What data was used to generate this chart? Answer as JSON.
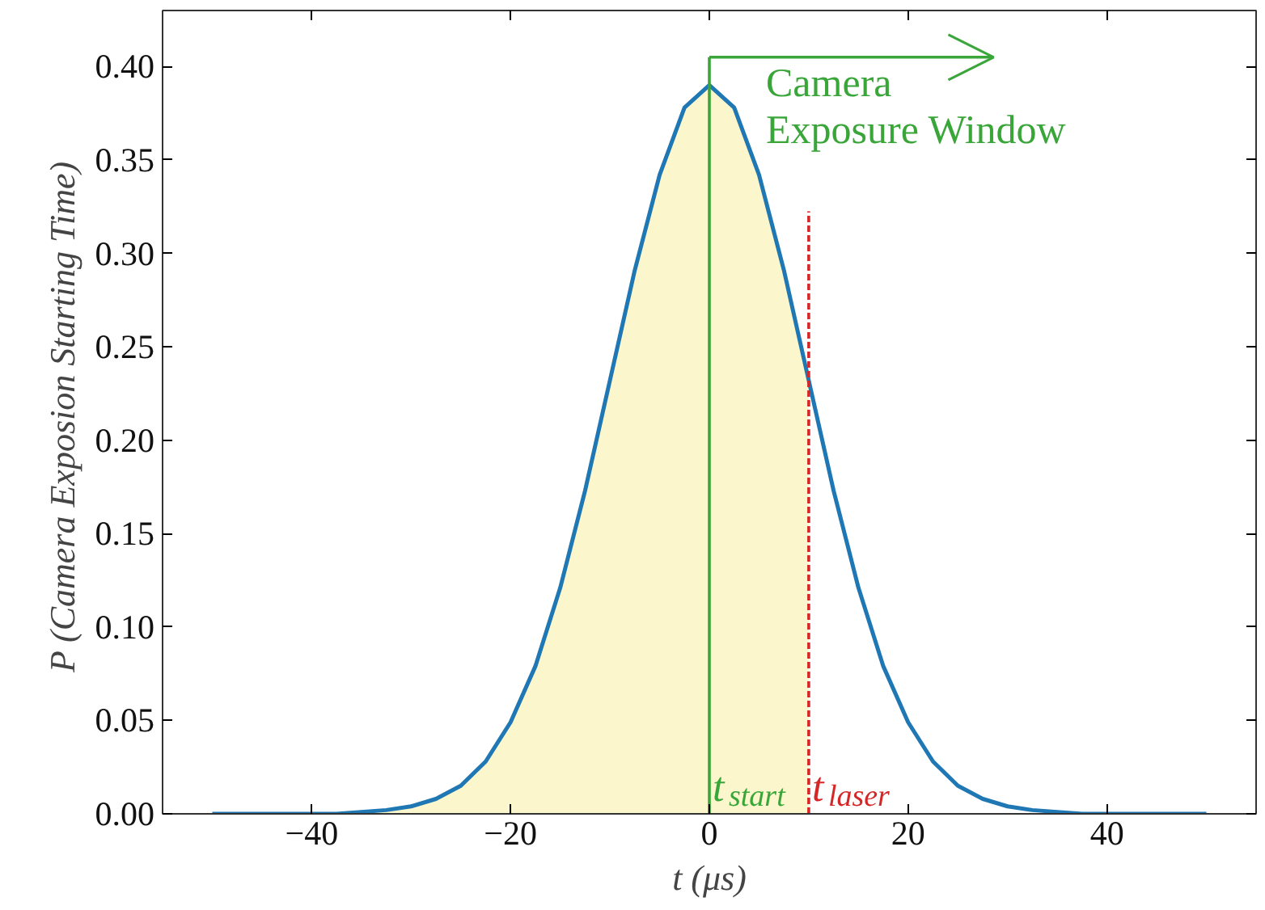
{
  "chart_data": {
    "type": "line",
    "xlabel": "t (μs)",
    "ylabel": "P  (Camera Exposion Starting Time)",
    "x": [
      -50,
      -47.5,
      -45,
      -42.5,
      -40,
      -37.5,
      -35,
      -32.5,
      -30,
      -27.5,
      -25,
      -22.5,
      -20,
      -17.5,
      -15,
      -12.5,
      -10,
      -7.5,
      -5,
      -2.5,
      0,
      2.5,
      5,
      7.5,
      10,
      12.5,
      15,
      17.5,
      20,
      22.5,
      25,
      27.5,
      30,
      32.5,
      35,
      37.5,
      40,
      42.5,
      45,
      47.5,
      50
    ],
    "series": [
      {
        "type": "area",
        "color": "#fcf6cd",
        "x": [
          -50,
          -47.5,
          -45,
          -42.5,
          -40,
          -37.5,
          -35,
          -32.5,
          -30,
          -27.5,
          -25,
          -22.5,
          -20,
          -17.5,
          -15,
          -12.5,
          -10,
          -7.5,
          -5,
          -2.5,
          0,
          2.5,
          5,
          7.5,
          10
        ],
        "values": [
          0,
          0,
          0,
          0,
          0,
          0,
          0.001,
          0.002,
          0.004,
          0.008,
          0.015,
          0.028,
          0.049,
          0.079,
          0.121,
          0.173,
          0.232,
          0.291,
          0.342,
          0.378,
          0.39,
          0.378,
          0.342,
          0.291,
          0.232
        ]
      },
      {
        "color": "#1f77b4",
        "values": [
          0,
          0,
          0,
          0,
          0,
          0,
          0.001,
          0.002,
          0.004,
          0.008,
          0.015,
          0.028,
          0.049,
          0.079,
          0.121,
          0.173,
          0.232,
          0.291,
          0.342,
          0.378,
          0.39,
          0.378,
          0.342,
          0.291,
          0.232,
          0.173,
          0.121,
          0.079,
          0.049,
          0.028,
          0.015,
          0.008,
          0.004,
          0.002,
          0.001,
          0,
          0,
          0,
          0,
          0,
          0
        ]
      }
    ],
    "xlim": [
      -55,
      55
    ],
    "xticks": [
      -40,
      -20,
      0,
      20,
      40
    ],
    "ylim": [
      0,
      0.43
    ],
    "yticks": [
      {
        "value": 0,
        "label": "0.00"
      },
      {
        "value": 0.05,
        "label": "0.05"
      },
      {
        "value": 0.1,
        "label": "0.10"
      },
      {
        "value": 0.15,
        "label": "0.15"
      },
      {
        "value": 0.2,
        "label": "0.20"
      },
      {
        "value": 0.25,
        "label": "0.25"
      },
      {
        "value": 0.3,
        "label": "0.30"
      },
      {
        "value": 0.35,
        "label": "0.35"
      },
      {
        "value": 0.4,
        "label": "0.40"
      }
    ],
    "ref_lines": [
      {
        "axis": "x",
        "value": 0,
        "label": "t$_{start}$",
        "color": "#3aa63a",
        "line_style": "solid"
      },
      {
        "axis": "x",
        "value": 10,
        "label": "t$_{laser}$",
        "color": "#d62728",
        "line_style": "dashed"
      }
    ],
    "annotations": [
      {
        "text": "Camera\nExposure Window",
        "x": 0,
        "y": 0.405
      }
    ],
    "grid": false
  }
}
